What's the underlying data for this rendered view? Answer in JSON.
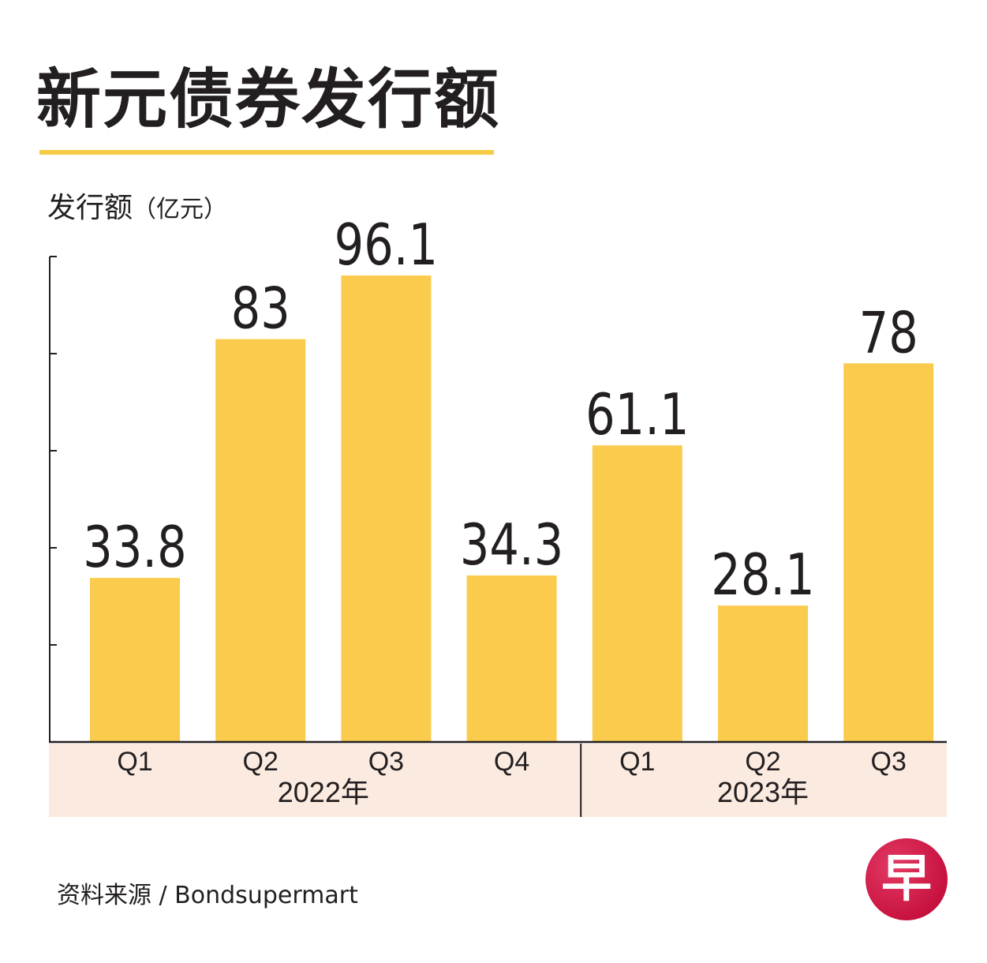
{
  "title": "新元债券发行额",
  "source": "资料来源 / Bondsupermart",
  "logo_char": "早",
  "colors": {
    "bar": "#fbcb4e",
    "band": "#fbeadf",
    "accent_underline": "#f5cc48",
    "text": "#231f20",
    "logo": "#c8123f"
  },
  "chart_data": {
    "type": "bar",
    "title": "新元债券发行额",
    "ylabel": "发行额",
    "yunit": "（亿元）",
    "xlabel": "",
    "ylim": [
      0,
      100
    ],
    "grid": false,
    "categories": [
      "Q1",
      "Q2",
      "Q3",
      "Q4",
      "Q1",
      "Q2",
      "Q3"
    ],
    "groups": [
      {
        "label": "2022年",
        "count": 4
      },
      {
        "label": "2023年",
        "count": 3
      }
    ],
    "values": [
      33.8,
      83,
      96.1,
      34.3,
      61.1,
      28.1,
      78
    ],
    "value_labels": [
      "33.8",
      "83",
      "96.1",
      "34.3",
      "61.1",
      "28.1",
      "78"
    ]
  }
}
